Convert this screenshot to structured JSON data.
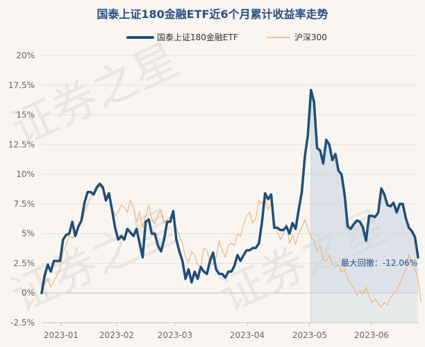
{
  "chart_data": {
    "type": "line",
    "title": "国泰上证180金融ETF近6个月累计收益率走势",
    "watermark": "证券之星",
    "y_ticks": [
      "20%",
      "17.5%",
      "15%",
      "12.5%",
      "10%",
      "7.5%",
      "5%",
      "2.5%",
      "0%",
      "-2.5%"
    ],
    "x_ticks": [
      "2023-01",
      "2023-02",
      "2023-03",
      "2023-04",
      "2023-05",
      "2023-06"
    ],
    "ylim": [
      -2.5,
      20
    ],
    "grid": "horizontal",
    "legend_position": "top-center",
    "drawdown_label": "最大回撤：-12.06%",
    "colors": {
      "fund": "#1f4e7a",
      "index": "#f0b27a",
      "drawdown_fill": "#c8d6e0",
      "zero_line": "#cfcfcf",
      "grid": "#e4e0db"
    },
    "series": [
      {
        "name": "国泰上证180金融ETF",
        "values": [
          0,
          1.5,
          2.4,
          1.8,
          2.7,
          2.7,
          2.7,
          4.5,
          4.9,
          5.0,
          6.0,
          4.8,
          5.6,
          6.1,
          7.6,
          8.5,
          8.5,
          8.3,
          8.9,
          9.2,
          8.9,
          7.8,
          8.4,
          7.0,
          5.5,
          4.5,
          4.8,
          4.5,
          5.4,
          5.1,
          4.8,
          5.4,
          4.2,
          3.0,
          6.0,
          6.2,
          5.0,
          5.0,
          4.0,
          3.5,
          4.5,
          6.0,
          6.0,
          6.9,
          4.5,
          3.5,
          2.7,
          1.2,
          2.0,
          0.9,
          1.8,
          1.2,
          2.2,
          1.8,
          1.6,
          2.7,
          3.4,
          2.0,
          1.6,
          1.6,
          1.3,
          1.8,
          1.8,
          2.3,
          3.2,
          2.7,
          3.2,
          3.6,
          3.6,
          3.8,
          3.8,
          4.2,
          6.0,
          8.4,
          7.9,
          8.3,
          5.5,
          5.5,
          5.3,
          5.3,
          5.6,
          5.0,
          5.9,
          5.4,
          7.0,
          8.5,
          11.5,
          13.3,
          17.1,
          16.1,
          12.2,
          12.0,
          10.9,
          12.9,
          12.5,
          11.2,
          11.7,
          10.3,
          10.0,
          8.3,
          5.6,
          5.4,
          5.8,
          6.1,
          6.0,
          5.5,
          4.4,
          6.5,
          6.5,
          6.4,
          6.8,
          8.8,
          8.3,
          7.4,
          7.3,
          7.6,
          6.8,
          7.5,
          7.5,
          6.3,
          5.5,
          5.2,
          4.7,
          3.0
        ]
      },
      {
        "name": "沪深300",
        "values": [
          0,
          0.8,
          1.2,
          0.5,
          1.0,
          1.5,
          2.0,
          3.5,
          4.0,
          4.8,
          4.6,
          5.0,
          5.5,
          6.0,
          6.8,
          7.5,
          8.0,
          8.4,
          8.6,
          9.0,
          8.7,
          8.2,
          8.0,
          7.2,
          6.5,
          6.8,
          7.4,
          7.2,
          6.8,
          7.8,
          7.2,
          6.0,
          6.9,
          5.5,
          6.5,
          7.4,
          6.2,
          5.8,
          6.6,
          7.0,
          5.9,
          6.2,
          6.4,
          6.5,
          5.5,
          4.8,
          4.2,
          3.0,
          2.6,
          3.5,
          3.2,
          2.4,
          2.2,
          3.8,
          3.6,
          2.6,
          2.4,
          3.0,
          4.4,
          3.6,
          3.0,
          4.0,
          4.2,
          4.0,
          5.0,
          4.8,
          5.8,
          6.5,
          6.8,
          5.9,
          6.3,
          7.8,
          7.5,
          8.0,
          7.0,
          7.6,
          6.0,
          5.2,
          4.5,
          5.0,
          5.8,
          4.2,
          4.9,
          4.1,
          5.0,
          5.5,
          6.2,
          5.4,
          4.7,
          4.4,
          3.5,
          4.0,
          2.8,
          2.7,
          3.2,
          2.5,
          2.2,
          2.4,
          1.8,
          2.0,
          1.2,
          0.8,
          0.4,
          -0.2,
          0.2,
          -0.1,
          0.5,
          -0.3,
          -0.8,
          -0.5,
          -0.9,
          -1.2,
          -0.8,
          -1.0,
          -0.4,
          0.0,
          0.2,
          0.8,
          1.4,
          2.0,
          3.2,
          2.6,
          2.0,
          1.2,
          -0.8
        ]
      }
    ]
  }
}
